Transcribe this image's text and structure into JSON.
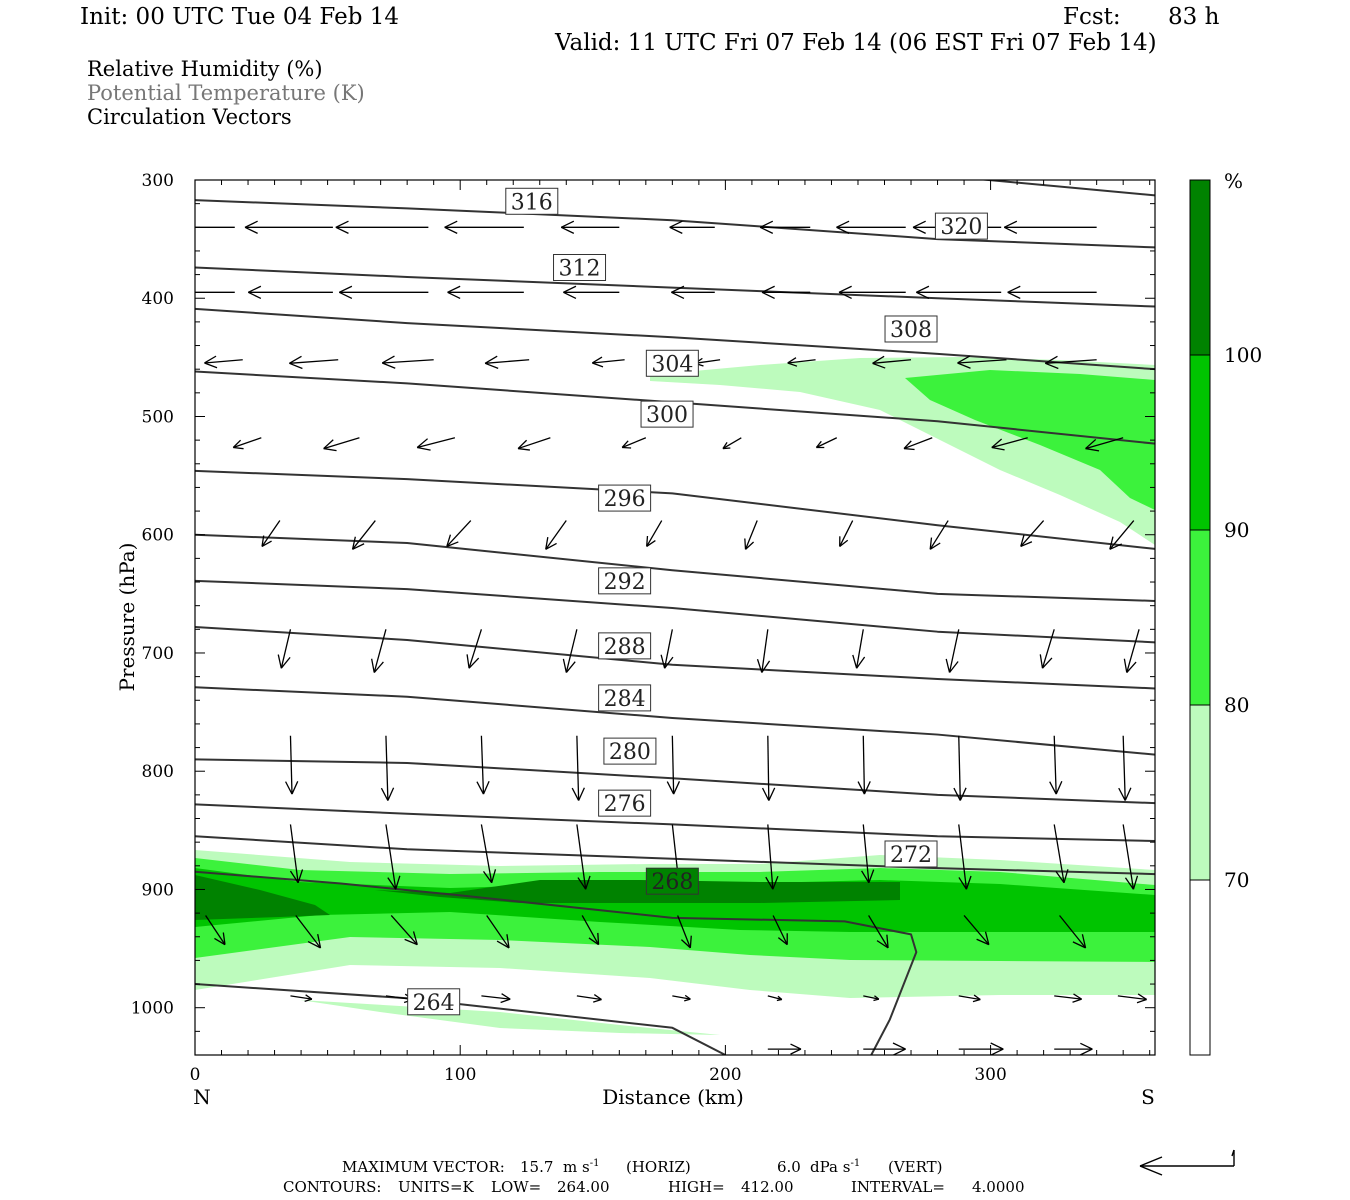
{
  "header": {
    "init": "Init: 00 UTC Tue 04 Feb 14",
    "fcst_label": "Fcst:",
    "fcst_value": "83 h",
    "valid": "Valid: 11 UTC Fri 07 Feb 14 (06 EST Fri 07 Feb 14)"
  },
  "legend": {
    "rh": "Relative Humidity (%)",
    "theta": "Potential Temperature (K)",
    "vectors": "Circulation Vectors"
  },
  "colors": {
    "rh70": "#bdfbbd",
    "rh80": "#3cf23c",
    "rh90": "#00c400",
    "rh100": "#008200",
    "contour": "#333333",
    "theta_label": "#222222"
  },
  "chart_data": {
    "type": "cross-section",
    "xlabel": "Distance (km)",
    "ylabel": "Pressure (hPa)",
    "xlim": [
      0,
      362
    ],
    "ylim": [
      300,
      1040
    ],
    "x_ticks": [
      0,
      100,
      200,
      300
    ],
    "y_ticks": [
      300,
      400,
      500,
      600,
      700,
      800,
      900,
      1000
    ],
    "x_end_labels": {
      "left": "N",
      "right": "S"
    },
    "colorbar": {
      "unit": "%",
      "levels": [
        70,
        80,
        90,
        100
      ]
    },
    "theta_contours": [
      {
        "label": "320",
        "points": [
          [
            0,
            270
          ],
          [
            80,
            273
          ],
          [
            180,
            276
          ],
          [
            280,
            296
          ],
          [
            362,
            313
          ]
        ],
        "label_at": [
          289,
          339
        ]
      },
      {
        "label": "316",
        "points": [
          [
            0,
            317
          ],
          [
            80,
            324
          ],
          [
            180,
            334
          ],
          [
            280,
            350
          ],
          [
            362,
            357
          ]
        ],
        "label_at": [
          127,
          318
        ]
      },
      {
        "label": "312",
        "points": [
          [
            0,
            374
          ],
          [
            80,
            382
          ],
          [
            180,
            391
          ],
          [
            280,
            400
          ],
          [
            362,
            407
          ]
        ],
        "label_at": [
          145,
          374
        ]
      },
      {
        "label": "308",
        "points": [
          [
            0,
            409
          ],
          [
            80,
            421
          ],
          [
            180,
            433
          ],
          [
            280,
            447
          ],
          [
            362,
            460
          ]
        ],
        "label_at": [
          270,
          426
        ]
      },
      {
        "label": "304",
        "points": [
          [
            0,
            462
          ],
          [
            80,
            472
          ],
          [
            180,
            488
          ],
          [
            280,
            504
          ],
          [
            362,
            523
          ]
        ],
        "label_at": [
          180,
          455
        ]
      },
      {
        "label": "300",
        "points": [
          [
            0,
            546
          ],
          [
            80,
            553
          ],
          [
            180,
            565
          ],
          [
            280,
            592
          ],
          [
            362,
            612
          ]
        ],
        "label_at": [
          178,
          498
        ]
      },
      {
        "label": "296",
        "points": [
          [
            0,
            600
          ],
          [
            80,
            607
          ],
          [
            180,
            630
          ],
          [
            280,
            650
          ],
          [
            362,
            656
          ]
        ],
        "label_at": [
          162,
          569
        ]
      },
      {
        "label": "292",
        "points": [
          [
            0,
            639
          ],
          [
            80,
            646
          ],
          [
            180,
            662
          ],
          [
            280,
            682
          ],
          [
            362,
            691
          ]
        ],
        "label_at": [
          162,
          639
        ]
      },
      {
        "label": "288",
        "points": [
          [
            0,
            678
          ],
          [
            80,
            689
          ],
          [
            180,
            710
          ],
          [
            280,
            722
          ],
          [
            362,
            730
          ]
        ],
        "label_at": [
          162,
          694
        ]
      },
      {
        "label": "284",
        "points": [
          [
            0,
            729
          ],
          [
            80,
            737
          ],
          [
            180,
            755
          ],
          [
            280,
            769
          ],
          [
            362,
            786
          ]
        ],
        "label_at": [
          162,
          738
        ]
      },
      {
        "label": "280",
        "points": [
          [
            0,
            790
          ],
          [
            80,
            793
          ],
          [
            180,
            806
          ],
          [
            280,
            820
          ],
          [
            362,
            827
          ]
        ],
        "label_at": [
          164,
          783
        ]
      },
      {
        "label": "276",
        "points": [
          [
            0,
            828
          ],
          [
            80,
            836
          ],
          [
            180,
            845
          ],
          [
            280,
            855
          ],
          [
            362,
            859
          ]
        ],
        "label_at": [
          162,
          827
        ]
      },
      {
        "label": "272",
        "points": [
          [
            0,
            855
          ],
          [
            80,
            866
          ],
          [
            180,
            874
          ],
          [
            280,
            882
          ],
          [
            362,
            887
          ]
        ],
        "label_at": [
          270,
          870
        ]
      },
      {
        "label": "268",
        "points": [
          [
            0,
            885
          ],
          [
            55,
            895
          ],
          [
            100,
            905
          ],
          [
            180,
            924
          ],
          [
            245,
            927
          ],
          [
            270,
            938
          ],
          [
            272,
            953
          ],
          [
            262,
            1010
          ],
          [
            255,
            1040
          ]
        ],
        "label_at": [
          180,
          893
        ]
      },
      {
        "label": "264",
        "points": [
          [
            0,
            980
          ],
          [
            80,
            992
          ],
          [
            180,
            1017
          ],
          [
            200,
            1040
          ]
        ],
        "label_at": [
          90,
          995
        ]
      }
    ],
    "max_vector": {
      "label": "MAXIMUM VECTOR:",
      "horiz_value": "15.7",
      "horiz_unit": "m s",
      "horiz_exp": "-1",
      "horiz_tag": "(HORIZ)",
      "vert_value": "6.0",
      "vert_unit": "dPa s",
      "vert_exp": "-1",
      "vert_tag": "(VERT)"
    },
    "contours_info": {
      "label": "CONTOURS:",
      "units": "UNITS=K",
      "low": "LOW=",
      "low_value": "264.00",
      "high": "HIGH=",
      "high_value": "412.00",
      "interval": "INTERVAL=",
      "interval_value": "4.0000"
    }
  }
}
